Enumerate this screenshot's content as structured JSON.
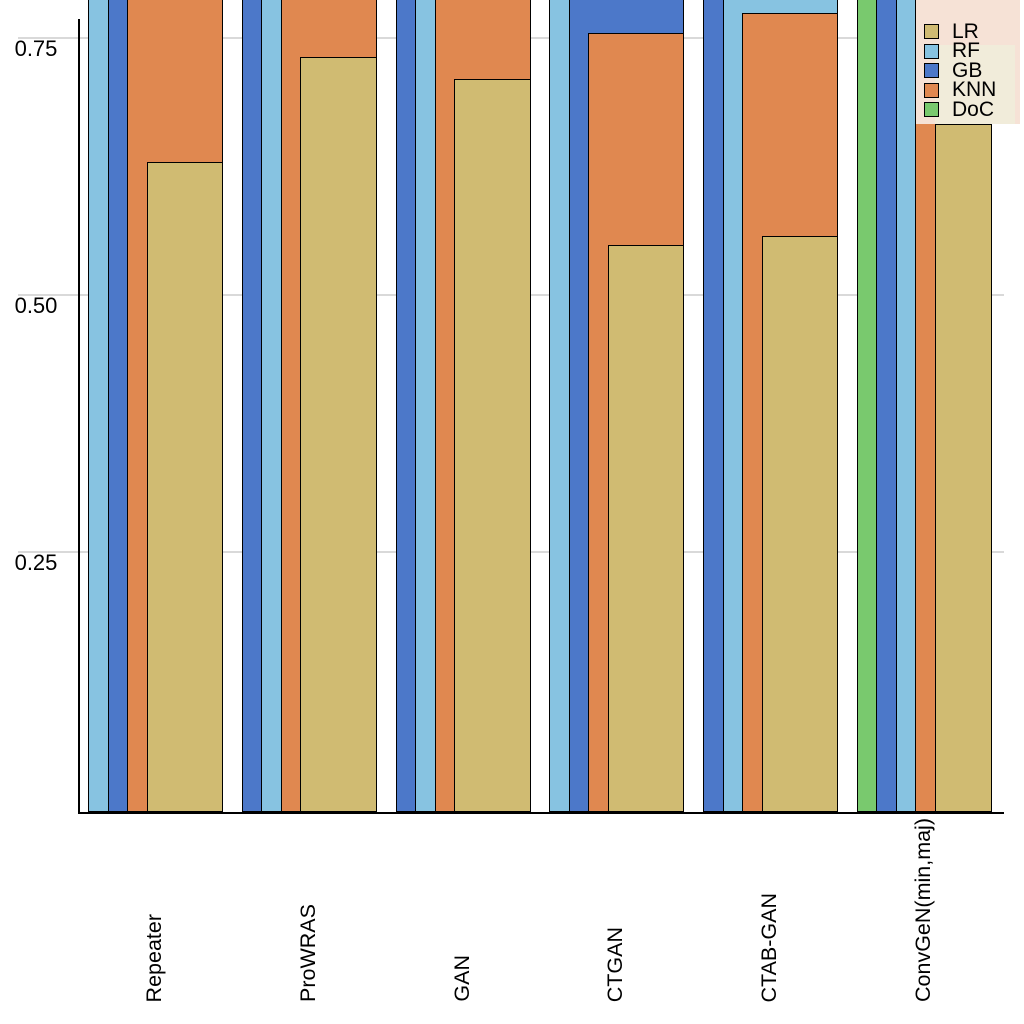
{
  "chart_data": {
    "type": "bar",
    "title": "",
    "xlabel": "",
    "ylabel": "",
    "y_ticks": [
      {
        "label": "0.75",
        "value": 0.75
      },
      {
        "label": "0.50",
        "value": 0.5
      },
      {
        "label": "0.25",
        "value": 0.25
      }
    ],
    "ylim_visible": [
      0.0,
      0.787
    ],
    "grid": "horizontal-major-only",
    "clipping_note": "Screenshot is cropped: bars with value null extend above the top edge of the image (> ~0.79)",
    "legend_position": "top-right-inside",
    "series_names": [
      "LR",
      "RF",
      "GB",
      "KNN",
      "DoC"
    ],
    "series_colors": {
      "LR": "#d0bb72",
      "RF": "#87c3e1",
      "GB": "#4c78c9",
      "KNN": "#e08850",
      "DoC": "#79c96e"
    },
    "categories": [
      "Repeater",
      "ProWRAS",
      "GAN",
      "CTGAN",
      "CTAB-GAN",
      "ConvGeN(min,maj)"
    ],
    "groups": [
      {
        "label": "Repeater",
        "draw_order_back_to_front": [
          "RF",
          "GB",
          "KNN",
          "LR"
        ],
        "values": {
          "LR": 0.629,
          "RF": null,
          "GB": null,
          "KNN": null
        }
      },
      {
        "label": "ProWRAS",
        "draw_order_back_to_front": [
          "GB",
          "RF",
          "KNN",
          "LR"
        ],
        "values": {
          "LR": 0.731,
          "RF": null,
          "GB": null,
          "KNN": null
        }
      },
      {
        "label": "GAN",
        "draw_order_back_to_front": [
          "GB",
          "RF",
          "KNN",
          "LR"
        ],
        "values": {
          "LR": 0.71,
          "RF": null,
          "GB": null,
          "KNN": null
        }
      },
      {
        "label": "CTGAN",
        "draw_order_back_to_front": [
          "RF",
          "GB",
          "KNN",
          "LR"
        ],
        "values": {
          "LR": 0.549,
          "KNN": 0.755,
          "RF": null,
          "GB": null
        }
      },
      {
        "label": "CTAB-GAN",
        "draw_order_back_to_front": [
          "GB",
          "RF",
          "KNN",
          "LR"
        ],
        "values": {
          "LR": 0.557,
          "KNN": 0.774,
          "RF": null,
          "GB": null
        }
      },
      {
        "label": "ConvGeN(min,maj)",
        "draw_order_back_to_front": [
          "DoC",
          "GB",
          "RF",
          "KNN",
          "LR"
        ],
        "values": {
          "LR": 0.666,
          "KNN": null,
          "RF": null,
          "GB": null,
          "DoC": null
        }
      }
    ],
    "legend_entries": [
      {
        "label": "LR"
      },
      {
        "label": "RF"
      },
      {
        "label": "GB"
      },
      {
        "label": "KNN"
      },
      {
        "label": "DoC"
      }
    ]
  }
}
